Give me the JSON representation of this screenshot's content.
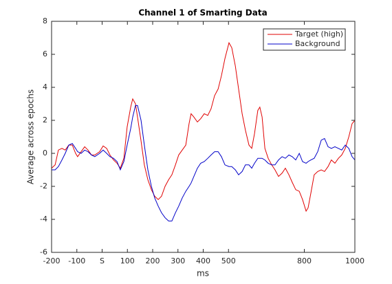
{
  "chart_data": {
    "type": "line",
    "title": "Channel 1 of Smarting Data",
    "xlabel": "ms",
    "ylabel": "Average across epochs",
    "xlim": [
      -200,
      1000
    ],
    "ylim": [
      -6,
      8
    ],
    "xticks": [
      -200,
      -100,
      {
        "value": 0,
        "label": "S"
      },
      100,
      200,
      300,
      400,
      500,
      800,
      1000
    ],
    "yticks": [
      -6,
      -4,
      -2,
      0,
      2,
      4,
      6,
      8
    ],
    "grid": false,
    "legend": "northeast",
    "x": [
      -200,
      -186,
      -173,
      -159,
      -146,
      -132,
      -118,
      -105,
      -97,
      -83,
      -69,
      -56,
      -42,
      -29,
      -10,
      4,
      18,
      31,
      45,
      59,
      72,
      86,
      99,
      113,
      121,
      132,
      140,
      154,
      167,
      181,
      195,
      208,
      222,
      235,
      249,
      263,
      276,
      290,
      303,
      317,
      331,
      344,
      352,
      363,
      377,
      390,
      404,
      418,
      431,
      445,
      459,
      472,
      486,
      502,
      513,
      527,
      540,
      554,
      567,
      581,
      592,
      603,
      616,
      624,
      633,
      644,
      657,
      671,
      684,
      698,
      712,
      725,
      739,
      752,
      766,
      780,
      793,
      807,
      815,
      826,
      839,
      853,
      867,
      880,
      894,
      907,
      921,
      935,
      948,
      962,
      976,
      989,
      1000
    ],
    "series": [
      {
        "name": "Target (high)",
        "color": "#e00000",
        "values": [
          -0.9,
          -0.7,
          0.2,
          0.3,
          0.2,
          0.5,
          0.5,
          0,
          -0.2,
          0.1,
          0.4,
          0.2,
          -0.1,
          -0.1,
          0.1,
          0.45,
          0.3,
          -0.1,
          -0.4,
          -0.6,
          -0.9,
          -0.3,
          1.6,
          2.8,
          3.3,
          3.0,
          2.2,
          0.75,
          -0.7,
          -1.6,
          -2.2,
          -2.6,
          -2.8,
          -2.6,
          -2.0,
          -1.6,
          -1.3,
          -0.7,
          -0.1,
          0.2,
          0.5,
          1.8,
          2.4,
          2.2,
          1.9,
          2.1,
          2.4,
          2.3,
          2.7,
          3.5,
          3.9,
          4.7,
          5.75,
          6.7,
          6.4,
          5.3,
          3.9,
          2.4,
          1.4,
          0.5,
          0.3,
          1.2,
          2.6,
          2.8,
          2.2,
          0.3,
          -0.3,
          -0.7,
          -1.0,
          -1.4,
          -1.2,
          -0.9,
          -1.3,
          -1.75,
          -2.2,
          -2.3,
          -2.8,
          -3.5,
          -3.3,
          -2.4,
          -1.3,
          -1.1,
          -1.0,
          -1.1,
          -0.8,
          -0.4,
          -0.6,
          -0.3,
          -0.1,
          0.3,
          1.0,
          1.8,
          2.0
        ]
      },
      {
        "name": "Background",
        "color": "#0000c8",
        "values": [
          -1.0,
          -1.0,
          -0.8,
          -0.4,
          0.0,
          0.5,
          0.6,
          0.3,
          0.1,
          0.0,
          0.2,
          0.1,
          -0.1,
          -0.2,
          0.0,
          0.2,
          0.0,
          -0.2,
          -0.3,
          -0.5,
          -1.0,
          -0.5,
          0.5,
          1.5,
          2.2,
          2.9,
          2.9,
          2.0,
          0.5,
          -1.0,
          -2.0,
          -2.7,
          -3.2,
          -3.6,
          -3.9,
          -4.1,
          -4.1,
          -3.6,
          -3.2,
          -2.7,
          -2.3,
          -2.0,
          -1.8,
          -1.4,
          -0.9,
          -0.6,
          -0.5,
          -0.3,
          -0.1,
          0.1,
          0.1,
          -0.2,
          -0.7,
          -0.8,
          -0.8,
          -1.0,
          -1.3,
          -1.1,
          -0.7,
          -0.7,
          -0.9,
          -0.6,
          -0.3,
          -0.3,
          -0.3,
          -0.4,
          -0.6,
          -0.7,
          -0.7,
          -0.4,
          -0.2,
          -0.3,
          -0.1,
          -0.2,
          -0.4,
          0.0,
          -0.5,
          -0.6,
          -0.5,
          -0.4,
          -0.3,
          0.1,
          0.8,
          0.9,
          0.4,
          0.3,
          0.4,
          0.3,
          0.2,
          0.5,
          0.3,
          -0.2,
          -0.4
        ]
      }
    ]
  }
}
